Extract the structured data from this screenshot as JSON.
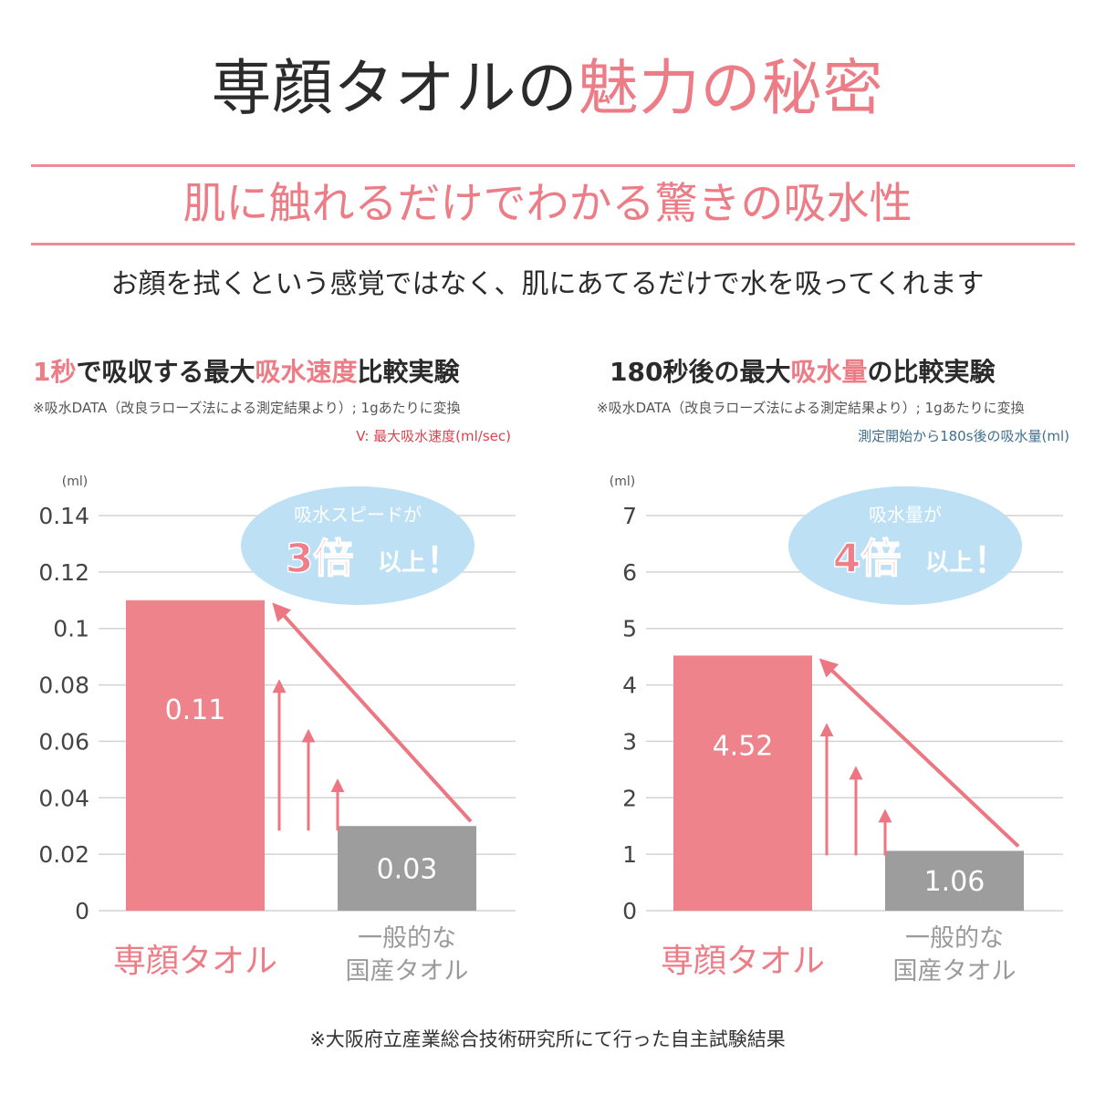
{
  "header": {
    "title_prefix": "専顔タオルの",
    "title_accent": "魅力の秘密",
    "subtitle": "肌に触れるだけでわかる驚きの吸水性",
    "tagline": "お顔を拭くという感覚ではなく、肌にあてるだけで水を吸ってくれます"
  },
  "footnote": "※大阪府立産業総合技術研究所にて行った自主試験結果",
  "colors": {
    "accent": "#ec7c86",
    "bar_primary": "#ee838c",
    "bar_secondary": "#9d9d9d",
    "arrow": "#ec7682",
    "bubble": "#bde0f5",
    "bubble_text": "#ffffff",
    "bubble_accent": "#ee7f89",
    "grid": "#d3d3d3"
  },
  "panels": [
    {
      "title_parts": [
        "1秒",
        "で吸収する最大",
        "吸水速度",
        "比較実験"
      ],
      "note": "※吸水DATA（改良ラローズ法による測定結果より）; 1gあたりに変換",
      "legend": "V: 最大吸水速度(ml/sec)",
      "bubble": {
        "line1": "吸水スピードが",
        "big": "3倍",
        "suffix": "以上",
        "bang": "！"
      }
    },
    {
      "title_parts": [
        "",
        "180秒後の最大",
        "吸水量",
        "の比較実験"
      ],
      "note": "※吸水DATA（改良ラローズ法による測定結果より）; 1gあたりに変換",
      "legend": "測定開始から180s後の吸水量(ml)",
      "bubble": {
        "line1": "吸水量が",
        "big": "4倍",
        "suffix": "以上",
        "bang": "！"
      }
    }
  ],
  "chart_data": [
    {
      "type": "bar",
      "title": "1秒で吸収する最大吸水速度比較実験",
      "unit_label": "(ml)",
      "categories": [
        "専顔タオル",
        "一般的な\n国産タオル"
      ],
      "values": [
        0.11,
        0.03
      ],
      "value_labels": [
        "0.11",
        "0.03"
      ],
      "ylim": [
        0,
        0.14
      ],
      "yticks": [
        0,
        0.02,
        0.04,
        0.06,
        0.08,
        0.1,
        0.12,
        0.14
      ],
      "ytick_labels": [
        "0",
        "0.02",
        "0.04",
        "0.06",
        "0.08",
        "0.1",
        "0.12",
        "0.14"
      ],
      "grid": true
    },
    {
      "type": "bar",
      "title": "180秒後の最大吸水量の比較実験",
      "unit_label": "(ml)",
      "categories": [
        "専顔タオル",
        "一般的な\n国産タオル"
      ],
      "values": [
        4.52,
        1.06
      ],
      "value_labels": [
        "4.52",
        "1.06"
      ],
      "ylim": [
        0,
        7
      ],
      "yticks": [
        0,
        1,
        2,
        3,
        4,
        5,
        6,
        7
      ],
      "ytick_labels": [
        "0",
        "1",
        "2",
        "3",
        "4",
        "5",
        "6",
        "7"
      ],
      "grid": true
    }
  ]
}
